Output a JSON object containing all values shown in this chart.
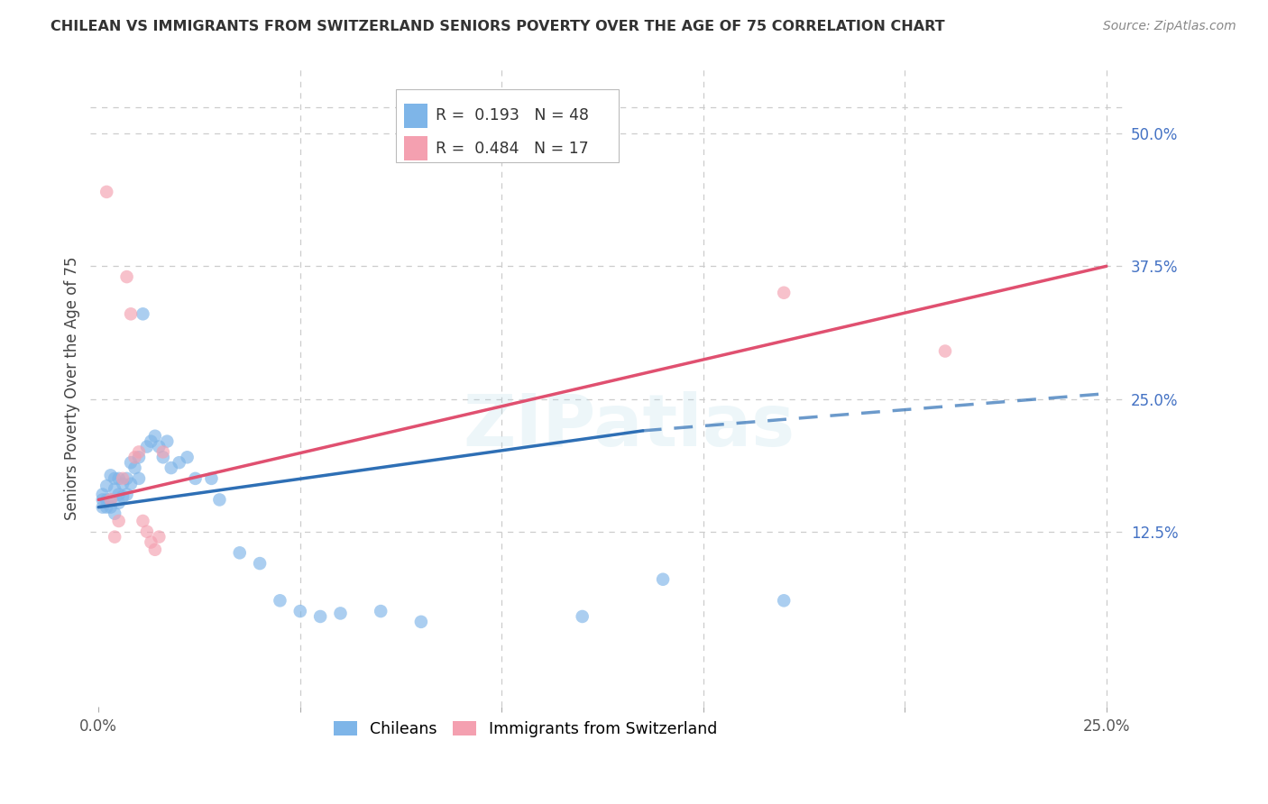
{
  "title": "CHILEAN VS IMMIGRANTS FROM SWITZERLAND SENIORS POVERTY OVER THE AGE OF 75 CORRELATION CHART",
  "source": "Source: ZipAtlas.com",
  "ylabel": "Seniors Poverty Over the Age of 75",
  "xlim": [
    -0.002,
    0.255
  ],
  "ylim": [
    -0.04,
    0.56
  ],
  "xtick_positions": [
    0.0,
    0.05,
    0.1,
    0.15,
    0.2,
    0.25
  ],
  "xticklabels": [
    "0.0%",
    "",
    "",
    "",
    "",
    "25.0%"
  ],
  "yticks_right": [
    0.125,
    0.25,
    0.375,
    0.5
  ],
  "ytick_right_labels": [
    "12.5%",
    "25.0%",
    "37.5%",
    "50.0%"
  ],
  "grid_color": "#cccccc",
  "background_color": "#ffffff",
  "chilean_color": "#7EB5E8",
  "swiss_color": "#F4A0B0",
  "chilean_line_color": "#2E6FB5",
  "swiss_line_color": "#E05070",
  "legend_R_chilean": "0.193",
  "legend_N_chilean": "48",
  "legend_R_swiss": "0.484",
  "legend_N_swiss": "17",
  "watermark": "ZIPatlas",
  "chilean_x": [
    0.001,
    0.001,
    0.001,
    0.002,
    0.002,
    0.002,
    0.003,
    0.003,
    0.003,
    0.004,
    0.004,
    0.004,
    0.005,
    0.005,
    0.005,
    0.006,
    0.006,
    0.007,
    0.007,
    0.008,
    0.008,
    0.009,
    0.01,
    0.01,
    0.011,
    0.012,
    0.013,
    0.014,
    0.015,
    0.016,
    0.017,
    0.018,
    0.02,
    0.022,
    0.024,
    0.028,
    0.03,
    0.035,
    0.04,
    0.045,
    0.05,
    0.055,
    0.06,
    0.07,
    0.08,
    0.12,
    0.14,
    0.17
  ],
  "chilean_y": [
    0.155,
    0.16,
    0.148,
    0.155,
    0.148,
    0.168,
    0.155,
    0.148,
    0.178,
    0.165,
    0.142,
    0.175,
    0.152,
    0.16,
    0.175,
    0.17,
    0.158,
    0.175,
    0.16,
    0.17,
    0.19,
    0.185,
    0.175,
    0.195,
    0.33,
    0.205,
    0.21,
    0.215,
    0.205,
    0.195,
    0.21,
    0.185,
    0.19,
    0.195,
    0.175,
    0.175,
    0.155,
    0.105,
    0.095,
    0.06,
    0.05,
    0.045,
    0.048,
    0.05,
    0.04,
    0.045,
    0.08,
    0.06
  ],
  "swiss_x": [
    0.002,
    0.003,
    0.004,
    0.005,
    0.006,
    0.007,
    0.008,
    0.009,
    0.01,
    0.011,
    0.012,
    0.013,
    0.014,
    0.015,
    0.016,
    0.17,
    0.21
  ],
  "swiss_y": [
    0.445,
    0.155,
    0.12,
    0.135,
    0.175,
    0.365,
    0.33,
    0.195,
    0.2,
    0.135,
    0.125,
    0.115,
    0.108,
    0.12,
    0.2,
    0.35,
    0.295
  ],
  "chilean_line_x0": 0.0,
  "chilean_line_x_solid_end": 0.135,
  "chilean_line_x_dash_end": 0.25,
  "chilean_line_y0": 0.148,
  "chilean_line_y_solid_end": 0.22,
  "chilean_line_y_dash_end": 0.255,
  "swiss_line_x0": 0.0,
  "swiss_line_x1": 0.25,
  "swiss_line_y0": 0.155,
  "swiss_line_y1": 0.375
}
